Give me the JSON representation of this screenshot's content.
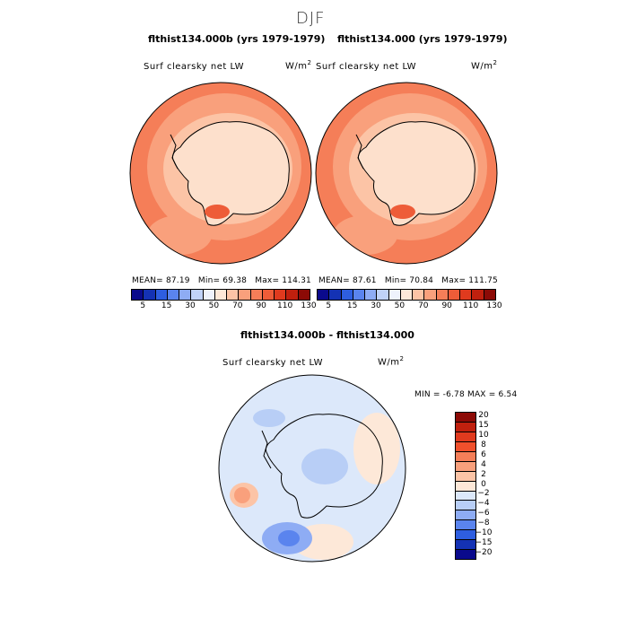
{
  "figure": {
    "season": "DJF",
    "top_left": {
      "title": "flthist134.000b (yrs 1979-1979)",
      "variable": "Surf clearsky net LW",
      "units": "W/m",
      "units_exp": "2",
      "mean_label": "MEAN=",
      "mean": "87.19",
      "min_label": "Min=",
      "min": "69.38",
      "max_label": "Max=",
      "max": "114.31"
    },
    "top_right": {
      "title": "flthist134.000 (yrs 1979-1979)",
      "variable": "Surf clearsky net LW",
      "units": "W/m",
      "units_exp": "2",
      "mean_label": "MEAN=",
      "mean": "87.61",
      "min_label": "Min=",
      "min": "70.84",
      "max_label": "Max=",
      "max": "111.75"
    },
    "bottom": {
      "title": "flthist134.000b - flthist134.000",
      "variable": "Surf clearsky net LW",
      "units": "W/m",
      "units_exp": "2",
      "min_label": "MIN =",
      "min": "-6.78",
      "max_label": "MAX =",
      "max": "6.54"
    }
  },
  "colorbar_top": {
    "tick_labels": [
      "5",
      "15",
      "30",
      "50",
      "70",
      "90",
      "110",
      "130"
    ],
    "colors": [
      "#0a0a8c",
      "#1432b4",
      "#2e5ee0",
      "#5a84ee",
      "#8eacf4",
      "#c0d2f8",
      "#eef2fc",
      "#fde8d8",
      "#fcc4a6",
      "#f9a07c",
      "#f57e58",
      "#ee5c38",
      "#e03a1e",
      "#c0200e",
      "#8c0a06"
    ]
  },
  "colorbar_diff": {
    "tick_labels": [
      "20",
      "15",
      "10",
      "8",
      "6",
      "4",
      "2",
      "0",
      "−2",
      "−4",
      "−6",
      "−8",
      "−10",
      "−15",
      "−20"
    ],
    "colors": [
      "#8c0a06",
      "#c0200e",
      "#e03a1e",
      "#f0502c",
      "#f57e58",
      "#f9a07c",
      "#fcc4a6",
      "#fde8d8",
      "#dce8fa",
      "#b8cef6",
      "#8eacf4",
      "#5a84ee",
      "#2e5ee0",
      "#1432b4",
      "#0a0a8c"
    ]
  },
  "maps": {
    "top_left": {
      "ocean_color": "#f57e58",
      "mid_ring_color": "#f9a07c",
      "coast_color": "#fcc4a6",
      "interior_color": "#fde0cc",
      "hot_color": "#ee5c38"
    },
    "top_right": {
      "ocean_color": "#f57e58",
      "mid_ring_color": "#f9a07c",
      "coast_color": "#fcc4a6",
      "interior_color": "#fde0cc",
      "hot_color": "#ee5c38"
    },
    "bottom": {
      "base_color": "#dce8fa",
      "warm_color": "#fde8d8",
      "pos_color": "#fcc4a6",
      "neg_color": "#b8cef6",
      "neg2_color": "#8eacf4",
      "strong_neg_color": "#5a84ee",
      "strong_pos_color": "#f9a07c"
    }
  }
}
